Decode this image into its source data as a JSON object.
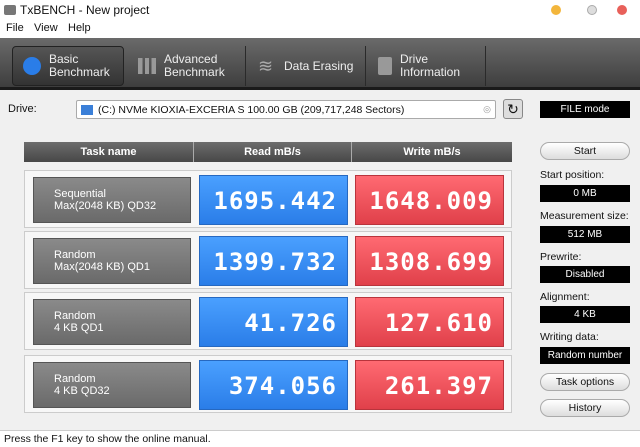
{
  "window": {
    "title": "TxBENCH - New project"
  },
  "menu": [
    "File",
    "View",
    "Help"
  ],
  "tabs": [
    {
      "line1": "Basic",
      "line2": "Benchmark",
      "active": true
    },
    {
      "line1": "Advanced",
      "line2": "Benchmark"
    },
    {
      "line1": "Data Erasing",
      "line2": ""
    },
    {
      "line1": "Drive",
      "line2": "Information"
    }
  ],
  "drive": {
    "label": "Drive:",
    "value": "(C:) NVMe KIOXIA-EXCERIA S  100.00 GB (209,717,248 Sectors)"
  },
  "mode": "FILE mode",
  "table": {
    "headers": [
      "Task name",
      "Read mB/s",
      "Write mB/s"
    ],
    "rows": [
      {
        "l1": "Sequential",
        "l2": "Max(2048 KB) QD32",
        "read": "1695.442",
        "write": "1648.009"
      },
      {
        "l1": "Random",
        "l2": "Max(2048 KB) QD1",
        "read": "1399.732",
        "write": "1308.699"
      },
      {
        "l1": "Random",
        "l2": "4 KB QD1",
        "read": "41.726",
        "write": "127.610"
      },
      {
        "l1": "Random",
        "l2": "4 KB QD32",
        "read": "374.056",
        "write": "261.397"
      }
    ]
  },
  "side": {
    "start": "Start",
    "start_position_label": "Start position:",
    "start_position": "0 MB",
    "measurement_size_label": "Measurement size:",
    "measurement_size": "512 MB",
    "prewrite_label": "Prewrite:",
    "prewrite": "Disabled",
    "alignment_label": "Alignment:",
    "alignment": "4 KB",
    "writing_data_label": "Writing data:",
    "writing_data": "Random number",
    "task_options": "Task options",
    "history": "History"
  },
  "status": "Press the F1 key to show the online manual."
}
